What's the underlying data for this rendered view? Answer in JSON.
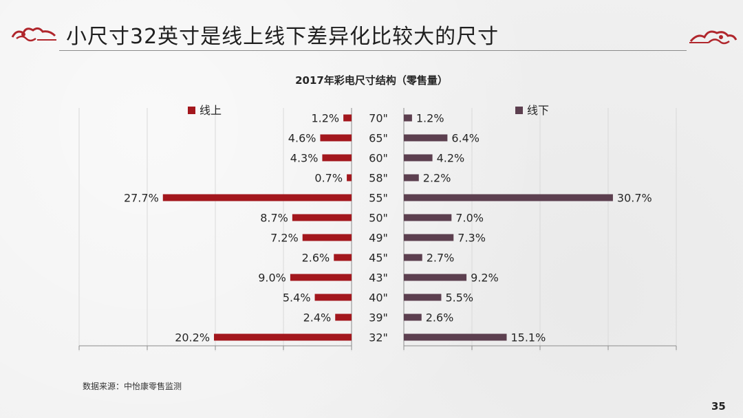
{
  "slide": {
    "title": "小尺寸32英寸是线上线下差异化比较大的尺寸",
    "source": "数据来源：中怡康零售监测",
    "page_number": "35"
  },
  "colors": {
    "online": "#a3171d",
    "offline": "#5c3f4f",
    "ornament": "#b0262c",
    "grid": "#d9d9d9",
    "axis": "#8c8c8c"
  },
  "chart_data": {
    "type": "bar",
    "orientation": "horizontal-butterfly",
    "title": "2017年彩电尺寸结构（零售量）",
    "categories": [
      "70\"",
      "65\"",
      "60\"",
      "58\"",
      "55\"",
      "50\"",
      "49\"",
      "45\"",
      "43\"",
      "40\"",
      "39\"",
      "32\""
    ],
    "series": [
      {
        "name": "线上",
        "side": "left",
        "values": [
          1.2,
          4.6,
          4.3,
          0.7,
          27.7,
          8.7,
          7.2,
          2.6,
          9.0,
          5.4,
          2.4,
          20.2
        ],
        "labels": [
          "1.2%",
          "4.6%",
          "4.3%",
          "0.7%",
          "27.7%",
          "8.7%",
          "7.2%",
          "2.6%",
          "9.0%",
          "5.4%",
          "2.4%",
          "20.2%"
        ]
      },
      {
        "name": "线下",
        "side": "right",
        "values": [
          1.2,
          6.4,
          4.2,
          2.2,
          30.7,
          7.0,
          7.3,
          2.7,
          9.2,
          5.5,
          2.6,
          15.1
        ],
        "labels": [
          "1.2%",
          "6.4%",
          "4.2%",
          "2.2%",
          "30.7%",
          "7.0%",
          "7.3%",
          "2.7%",
          "9.2%",
          "5.5%",
          "2.6%",
          "15.1%"
        ]
      }
    ],
    "xlim": [
      0,
      40
    ],
    "grid": true,
    "legend": "top"
  }
}
